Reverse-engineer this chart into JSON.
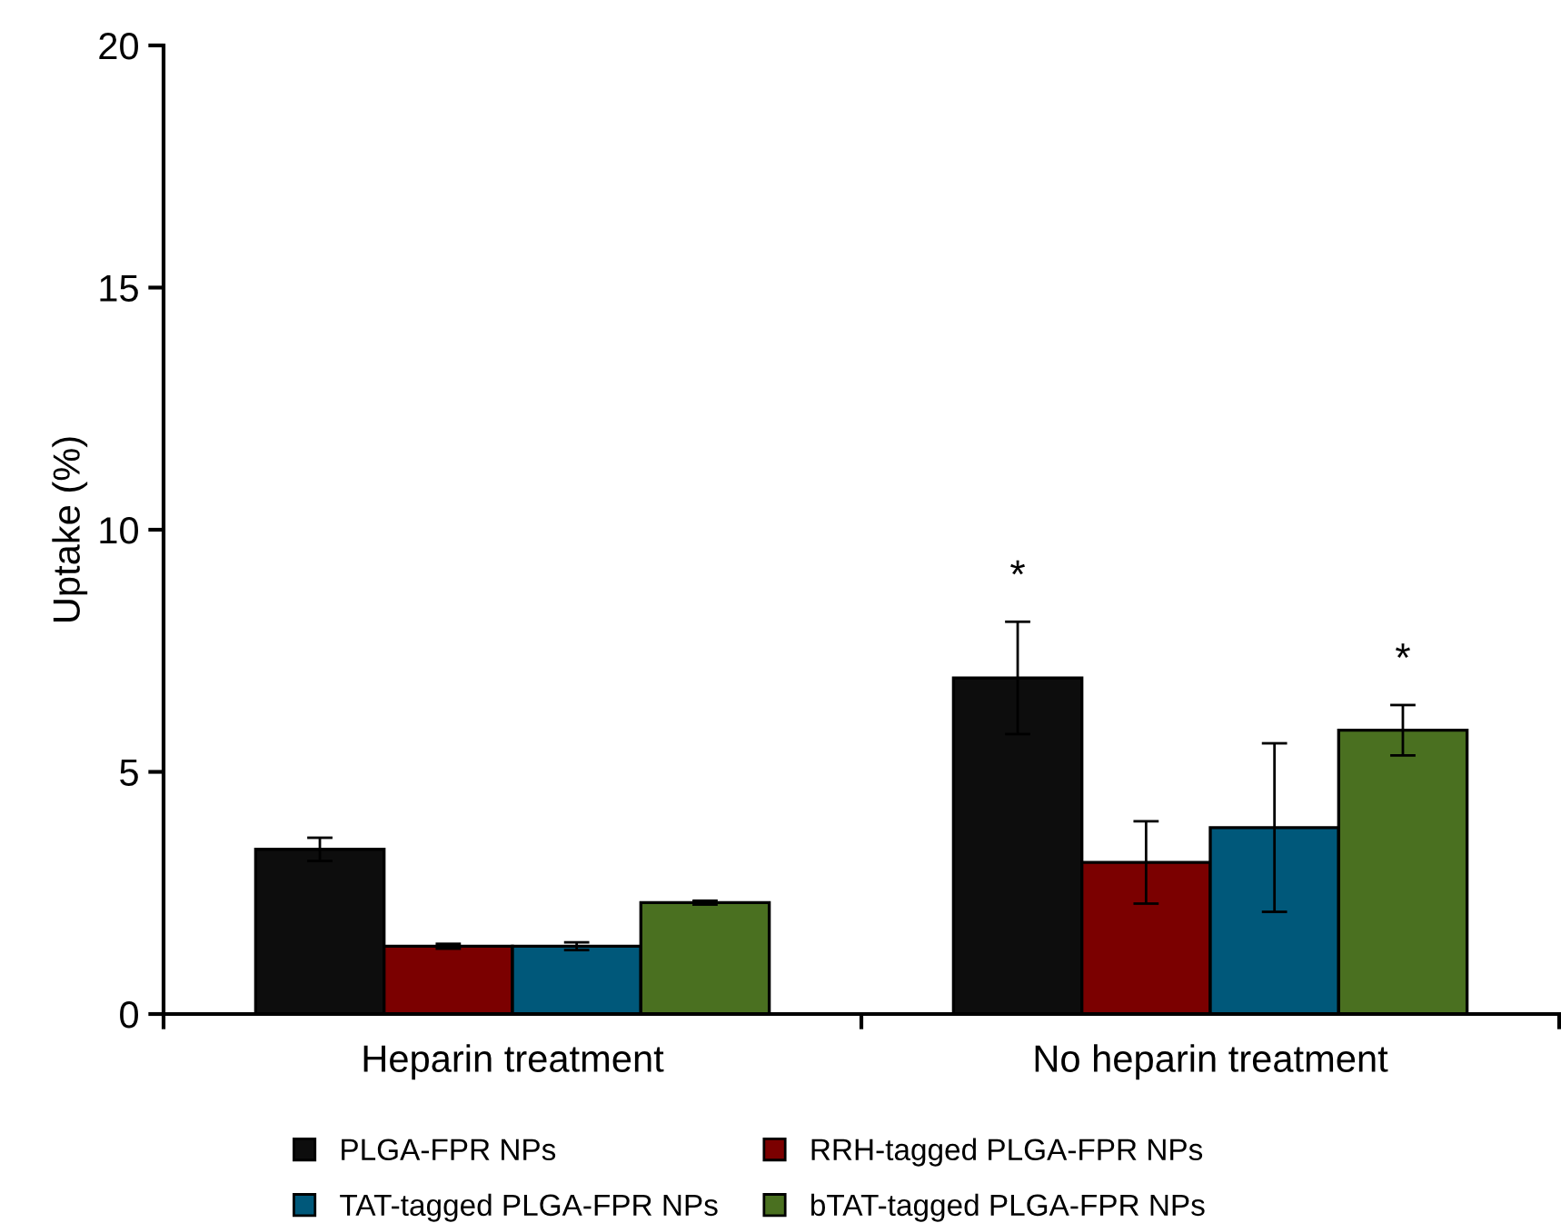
{
  "chart_data": {
    "type": "bar",
    "ylabel": "Uptake (%)",
    "categories": [
      "Heparin treatment",
      "No heparin treatment"
    ],
    "series": [
      {
        "name": "PLGA-FPR NPs",
        "color": "#0d0d0d",
        "values": [
          3.4,
          6.94
        ],
        "errors": [
          0.24,
          1.16
        ]
      },
      {
        "name": "RRH-tagged PLGA-FPR NPs",
        "color": "#7b0000",
        "values": [
          1.4,
          3.13
        ],
        "errors": [
          0.05,
          0.85
        ]
      },
      {
        "name": "TAT-tagged PLGA-FPR NPs",
        "color": "#00587a",
        "values": [
          1.4,
          3.85
        ],
        "errors": [
          0.08,
          1.74
        ]
      },
      {
        "name": "bTAT-tagged PLGA-FPR NPs",
        "color": "#4a7020",
        "values": [
          2.3,
          5.86
        ],
        "errors": [
          0.04,
          0.52
        ]
      }
    ],
    "ylim": [
      0,
      20
    ],
    "yticks": [
      0,
      5,
      10,
      15,
      20
    ],
    "grid": false,
    "legend": "bottom",
    "annotations": [
      "*",
      "*"
    ]
  }
}
